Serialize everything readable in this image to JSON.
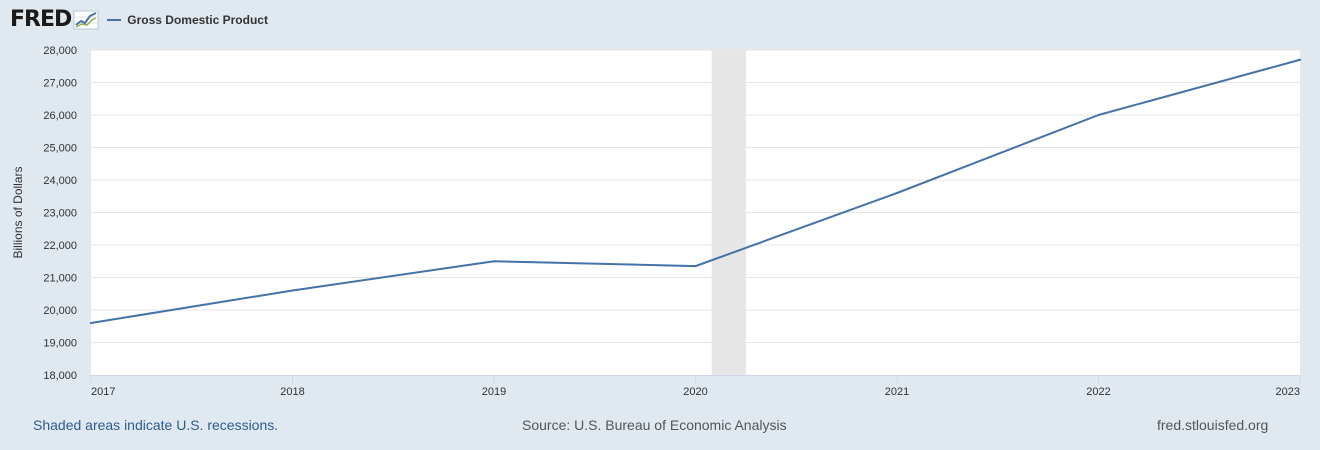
{
  "header": {
    "logo_text": "FRED",
    "legend_label": "Gross Domestic Product"
  },
  "colors": {
    "page_background": "#e1e9f0",
    "plot_background": "#ffffff",
    "series_line": "#4572a7",
    "recession_shade": "#e6e6e6",
    "gridline": "#e6e6e6",
    "footer_note": "#2e5a92"
  },
  "chart_data": {
    "type": "line",
    "title": "",
    "xlabel": "",
    "ylabel": "Billions of Dollars",
    "ylim": [
      18000,
      28000
    ],
    "yticks": [
      18000,
      19000,
      20000,
      21000,
      22000,
      23000,
      24000,
      25000,
      26000,
      27000,
      28000
    ],
    "ytick_labels": [
      "18,000",
      "19,000",
      "20,000",
      "21,000",
      "22,000",
      "23,000",
      "24,000",
      "25,000",
      "26,000",
      "27,000",
      "28,000"
    ],
    "xlim": [
      2017,
      2023
    ],
    "xticks": [
      2017,
      2018,
      2019,
      2020,
      2021,
      2022,
      2023
    ],
    "xtick_labels": [
      "2017",
      "2018",
      "2019",
      "2020",
      "2021",
      "2022",
      "2023"
    ],
    "grid": true,
    "series": [
      {
        "name": "Gross Domestic Product",
        "x": [
          2017,
          2018,
          2019,
          2020,
          2021,
          2022,
          2023
        ],
        "y": [
          19600,
          20600,
          21500,
          21350,
          23600,
          26000,
          27700
        ]
      }
    ],
    "recessions": [
      {
        "start": 2020.08,
        "end": 2020.25
      }
    ]
  },
  "footer": {
    "note": "Shaded areas indicate U.S. recessions.",
    "source": "Source: U.S. Bureau of Economic Analysis",
    "url": "fred.stlouisfed.org"
  }
}
